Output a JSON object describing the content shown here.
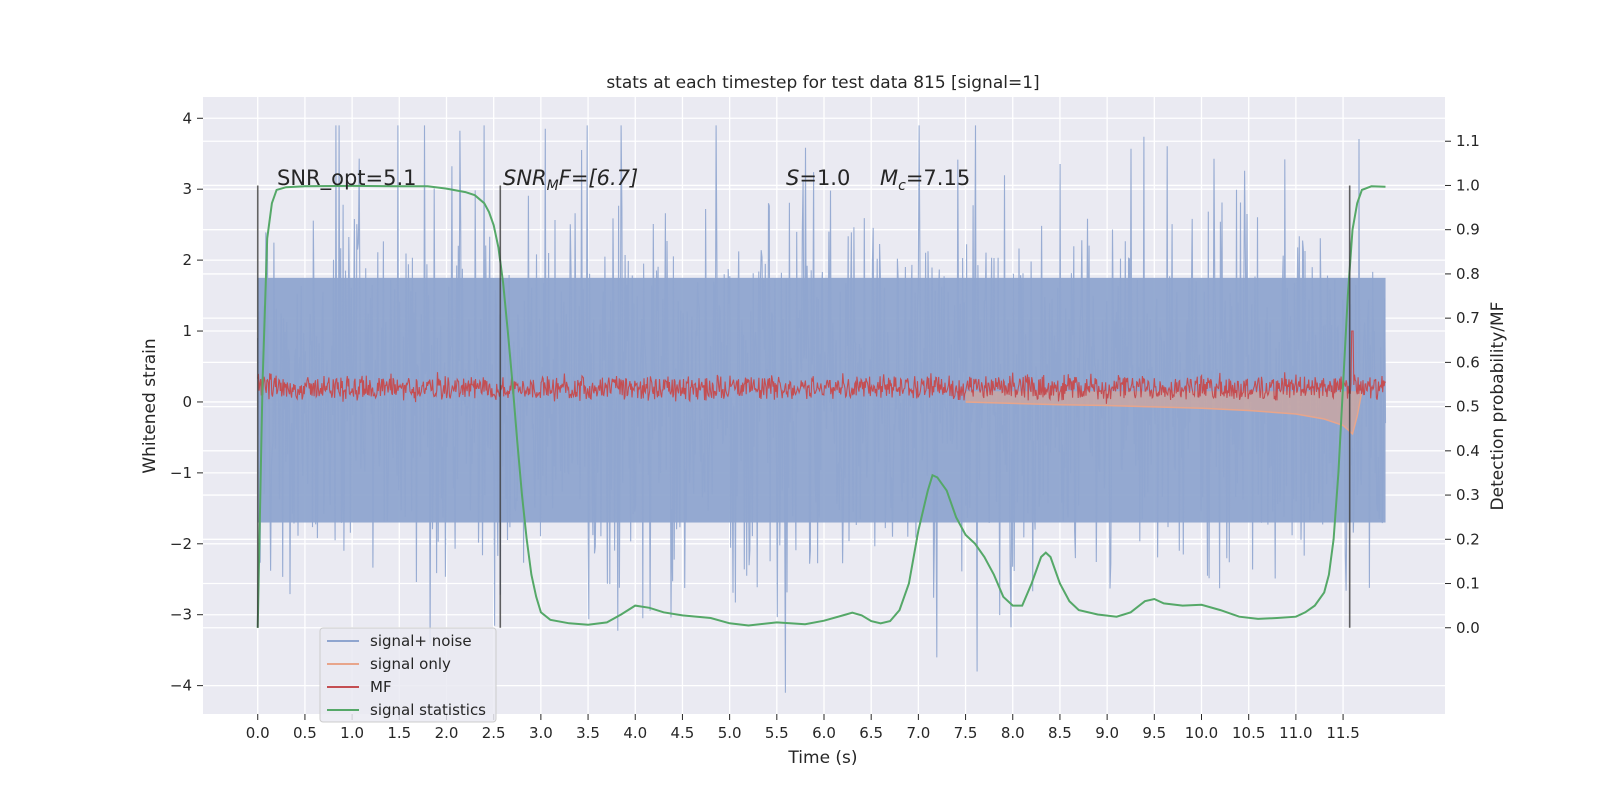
{
  "chart_data": {
    "type": "line",
    "title": "stats at each timestep for test data 815 [signal=1]",
    "xlabel": "Time (s)",
    "ylabel": "Whitened strain",
    "y2label": "Detection probability/MF",
    "xlim": [
      -0.58,
      12.58
    ],
    "ylim": [
      -4.4,
      4.3
    ],
    "y2lim": [
      -0.195,
      1.2
    ],
    "x_ticks": [
      0.0,
      0.5,
      1.0,
      1.5,
      2.0,
      2.5,
      3.0,
      3.5,
      4.0,
      4.5,
      5.0,
      5.5,
      6.0,
      6.5,
      7.0,
      7.5,
      8.0,
      8.5,
      9.0,
      9.5,
      10.0,
      10.5,
      11.0,
      11.5
    ],
    "x_tick_labels": [
      "0.0",
      "0.5",
      "1.0",
      "1.5",
      "2.0",
      "2.5",
      "3.0",
      "3.5",
      "4.0",
      "4.5",
      "5.0",
      "5.5",
      "6.0",
      "6.5",
      "7.0",
      "7.5",
      "8.0",
      "8.5",
      "9.0",
      "9.5",
      "10.0",
      "10.5",
      "11.0",
      "11.5"
    ],
    "y_ticks": [
      -4,
      -3,
      -2,
      -1,
      0,
      1,
      2,
      3,
      4
    ],
    "y_tick_labels": [
      "−4",
      "−3",
      "−2",
      "−1",
      "0",
      "1",
      "2",
      "3",
      "4"
    ],
    "y2_ticks": [
      0.0,
      0.1,
      0.2,
      0.3,
      0.4,
      0.5,
      0.6,
      0.7,
      0.8,
      0.9,
      1.0,
      1.1
    ],
    "y2_tick_labels": [
      "0.0",
      "0.1",
      "0.2",
      "0.3",
      "0.4",
      "0.5",
      "0.6",
      "0.7",
      "0.8",
      "0.9",
      "1.0",
      "1.1"
    ],
    "grid": true,
    "legend_placement": "lower-left",
    "annotations": {
      "snr_opt": "SNR_opt=5.1",
      "snr_mf_base": "SNR",
      "snr_mf_sub": "M",
      "snr_mf_rest": "F=[6.7]",
      "s_sym": "S",
      "s_val": "=1.0",
      "mc_sym": "M",
      "mc_sub": "c",
      "mc_val": "=7.15"
    },
    "vlines": [
      0.0,
      2.57,
      11.57
    ],
    "series": [
      {
        "name": "signal+ noise",
        "color": "#8fa5cf",
        "x_range": [
          0.0,
          11.95
        ],
        "band_lower": -1.7,
        "band_upper": 1.75,
        "peak_min": -4.1,
        "peak_max": 3.9
      },
      {
        "name": "signal only",
        "color": "#e8a58b",
        "points": [
          [
            7.5,
            0.0
          ],
          [
            8.0,
            -0.02
          ],
          [
            8.5,
            -0.04
          ],
          [
            9.0,
            -0.05
          ],
          [
            9.5,
            -0.07
          ],
          [
            10.0,
            -0.09
          ],
          [
            10.5,
            -0.12
          ],
          [
            11.0,
            -0.17
          ],
          [
            11.3,
            -0.24
          ],
          [
            11.5,
            -0.33
          ],
          [
            11.6,
            -0.45
          ],
          [
            11.65,
            -0.2
          ],
          [
            11.7,
            0.15
          ]
        ]
      },
      {
        "name": "MF",
        "color": "#c44e52",
        "baseline": 0.2,
        "spread": 0.15,
        "spike": [
          11.6,
          1.0
        ]
      },
      {
        "name": "signal statistics",
        "color": "#55a868",
        "axis": "right",
        "points": [
          [
            0.0,
            0.0
          ],
          [
            0.05,
            0.55
          ],
          [
            0.1,
            0.88
          ],
          [
            0.15,
            0.96
          ],
          [
            0.2,
            0.99
          ],
          [
            0.3,
            0.996
          ],
          [
            0.5,
            0.998
          ],
          [
            1.0,
            0.999
          ],
          [
            1.5,
            0.998
          ],
          [
            1.8,
            0.998
          ],
          [
            2.0,
            0.993
          ],
          [
            2.2,
            0.985
          ],
          [
            2.3,
            0.978
          ],
          [
            2.4,
            0.96
          ],
          [
            2.45,
            0.94
          ],
          [
            2.5,
            0.91
          ],
          [
            2.55,
            0.86
          ],
          [
            2.6,
            0.78
          ],
          [
            2.65,
            0.67
          ],
          [
            2.7,
            0.55
          ],
          [
            2.75,
            0.42
          ],
          [
            2.8,
            0.3
          ],
          [
            2.85,
            0.2
          ],
          [
            2.9,
            0.12
          ],
          [
            2.95,
            0.07
          ],
          [
            3.0,
            0.035
          ],
          [
            3.1,
            0.018
          ],
          [
            3.3,
            0.01
          ],
          [
            3.5,
            0.007
          ],
          [
            3.7,
            0.012
          ],
          [
            3.85,
            0.03
          ],
          [
            4.0,
            0.05
          ],
          [
            4.15,
            0.045
          ],
          [
            4.3,
            0.035
          ],
          [
            4.5,
            0.028
          ],
          [
            4.8,
            0.022
          ],
          [
            5.0,
            0.01
          ],
          [
            5.2,
            0.005
          ],
          [
            5.5,
            0.012
          ],
          [
            5.8,
            0.008
          ],
          [
            6.0,
            0.016
          ],
          [
            6.2,
            0.028
          ],
          [
            6.3,
            0.034
          ],
          [
            6.4,
            0.028
          ],
          [
            6.5,
            0.015
          ],
          [
            6.6,
            0.01
          ],
          [
            6.7,
            0.015
          ],
          [
            6.8,
            0.04
          ],
          [
            6.9,
            0.1
          ],
          [
            7.0,
            0.22
          ],
          [
            7.1,
            0.31
          ],
          [
            7.15,
            0.345
          ],
          [
            7.2,
            0.34
          ],
          [
            7.3,
            0.31
          ],
          [
            7.4,
            0.25
          ],
          [
            7.5,
            0.21
          ],
          [
            7.6,
            0.19
          ],
          [
            7.7,
            0.16
          ],
          [
            7.8,
            0.12
          ],
          [
            7.9,
            0.07
          ],
          [
            8.0,
            0.05
          ],
          [
            8.1,
            0.05
          ],
          [
            8.2,
            0.1
          ],
          [
            8.3,
            0.16
          ],
          [
            8.35,
            0.17
          ],
          [
            8.4,
            0.16
          ],
          [
            8.5,
            0.1
          ],
          [
            8.6,
            0.06
          ],
          [
            8.7,
            0.04
          ],
          [
            8.9,
            0.03
          ],
          [
            9.1,
            0.025
          ],
          [
            9.25,
            0.035
          ],
          [
            9.4,
            0.06
          ],
          [
            9.5,
            0.065
          ],
          [
            9.6,
            0.055
          ],
          [
            9.8,
            0.05
          ],
          [
            10.0,
            0.052
          ],
          [
            10.2,
            0.04
          ],
          [
            10.4,
            0.025
          ],
          [
            10.6,
            0.02
          ],
          [
            10.8,
            0.022
          ],
          [
            11.0,
            0.025
          ],
          [
            11.1,
            0.035
          ],
          [
            11.2,
            0.05
          ],
          [
            11.3,
            0.08
          ],
          [
            11.35,
            0.12
          ],
          [
            11.4,
            0.2
          ],
          [
            11.45,
            0.35
          ],
          [
            11.5,
            0.55
          ],
          [
            11.55,
            0.75
          ],
          [
            11.6,
            0.9
          ],
          [
            11.65,
            0.96
          ],
          [
            11.7,
            0.99
          ],
          [
            11.8,
            0.998
          ],
          [
            11.95,
            0.997
          ]
        ]
      }
    ],
    "legend": [
      {
        "label": "signal+ noise",
        "color": "#8fa5cf"
      },
      {
        "label": "signal only",
        "color": "#e8a58b"
      },
      {
        "label": "MF",
        "color": "#c44e52"
      },
      {
        "label": "signal statistics",
        "color": "#55a868"
      }
    ]
  }
}
